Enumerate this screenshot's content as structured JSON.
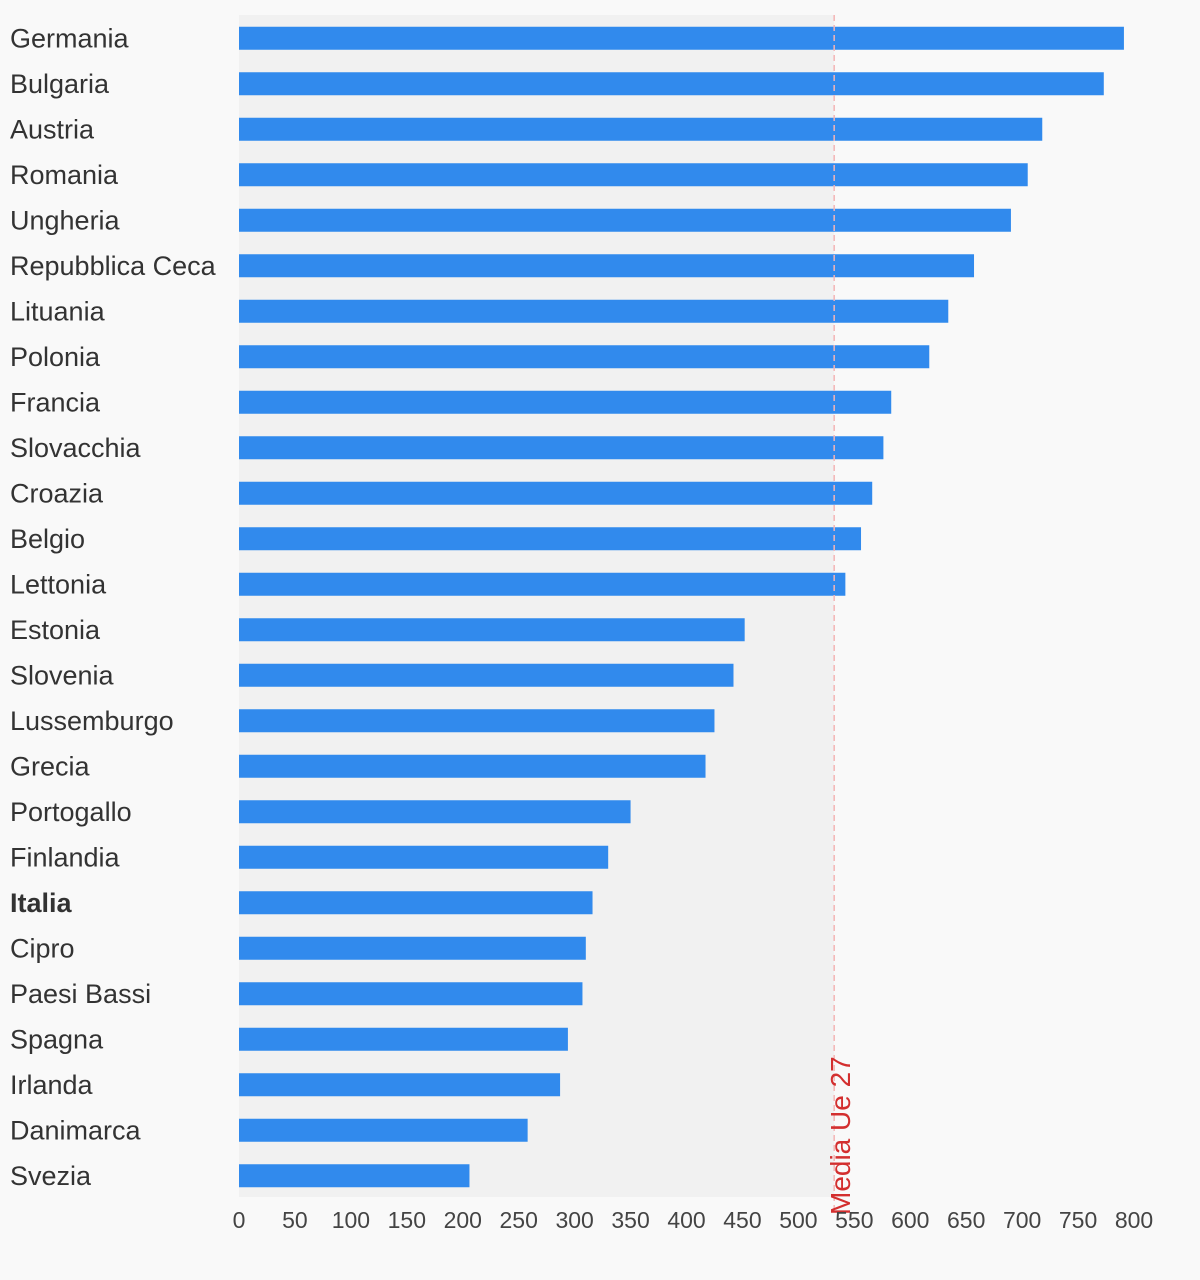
{
  "chart_data": {
    "type": "bar",
    "orientation": "horizontal",
    "categories": [
      "Germania",
      "Bulgaria",
      "Austria",
      "Romania",
      "Ungheria",
      "Repubblica Ceca",
      "Lituania",
      "Polonia",
      "Francia",
      "Slovacchia",
      "Croazia",
      "Belgio",
      "Lettonia",
      "Estonia",
      "Slovenia",
      "Lussemburgo",
      "Grecia",
      "Portogallo",
      "Finlandia",
      "Italia",
      "Cipro",
      "Paesi Bassi",
      "Spagna",
      "Irlanda",
      "Danimarca",
      "Svezia"
    ],
    "values": [
      791,
      773,
      718,
      705,
      690,
      657,
      634,
      617,
      583,
      576,
      566,
      556,
      542,
      452,
      442,
      425,
      417,
      350,
      330,
      316,
      310,
      307,
      294,
      287,
      258,
      206
    ],
    "highlight": "Italia",
    "reference_line": {
      "label": "Media Ue 27",
      "value": 532
    },
    "xticks": [
      0,
      50,
      100,
      150,
      200,
      250,
      300,
      350,
      400,
      450,
      500,
      550,
      600,
      650,
      700,
      750,
      800
    ],
    "xlim": [
      0,
      800
    ],
    "title": "",
    "xlabel": "",
    "ylabel": "",
    "colors": {
      "bar": "#318aed",
      "reference": "#d32f2f",
      "plot_bg": "#f1f1f1",
      "page_bg": "#f9f9f9"
    }
  }
}
